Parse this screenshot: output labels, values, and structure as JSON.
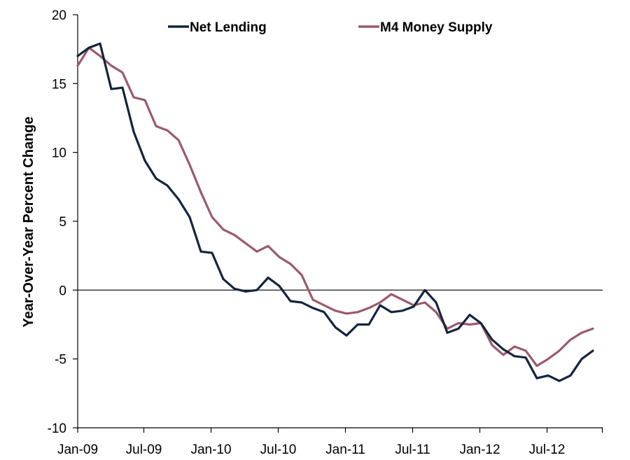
{
  "chart_data": {
    "type": "line",
    "title": "",
    "xlabel": "",
    "ylabel": "Year-Over-Year Percent Change",
    "ylim": [
      -10,
      20
    ],
    "yticks": [
      -10,
      -5,
      0,
      5,
      10,
      15,
      20
    ],
    "x_tick_labels": [
      "Jan-09",
      "Jul-09",
      "Jan-10",
      "Jul-10",
      "Jan-11",
      "Jul-11",
      "Jan-12",
      "Jul-12"
    ],
    "x_start": "2009-01",
    "x_end": "2012-12",
    "grid": false,
    "zero_line": true,
    "legend_position": "top",
    "colors": {
      "Net Lending": "#14243f",
      "M4 Money Supply": "#9b5a6b"
    },
    "series": [
      {
        "name": "Net Lending",
        "values": [
          17.0,
          17.6,
          17.9,
          14.6,
          14.7,
          11.5,
          9.4,
          8.1,
          7.6,
          6.6,
          5.3,
          2.8,
          2.7,
          0.8,
          0.1,
          -0.1,
          0.0,
          0.9,
          0.3,
          -0.8,
          -0.9,
          -1.3,
          -1.6,
          -2.7,
          -3.3,
          -2.5,
          -2.5,
          -1.1,
          -1.6,
          -1.5,
          -1.2,
          0.0,
          -0.9,
          -3.1,
          -2.8,
          -1.8,
          -2.4,
          -3.6,
          -4.3,
          -4.8,
          -4.9,
          -6.4,
          -6.2,
          -6.6,
          -6.2,
          -5.0,
          -4.4
        ]
      },
      {
        "name": "M4 Money Supply",
        "values": [
          16.3,
          17.6,
          17.0,
          16.3,
          15.8,
          14.0,
          13.8,
          11.9,
          11.6,
          10.9,
          9.1,
          7.1,
          5.3,
          4.4,
          4.0,
          3.4,
          2.8,
          3.2,
          2.4,
          1.9,
          1.1,
          -0.7,
          -1.1,
          -1.5,
          -1.7,
          -1.6,
          -1.3,
          -0.9,
          -0.3,
          -0.7,
          -1.1,
          -0.9,
          -1.6,
          -2.8,
          -2.4,
          -2.5,
          -2.4,
          -4.0,
          -4.7,
          -4.1,
          -4.4,
          -5.5,
          -5.0,
          -4.4,
          -3.6,
          -3.1,
          -2.8
        ]
      }
    ]
  }
}
